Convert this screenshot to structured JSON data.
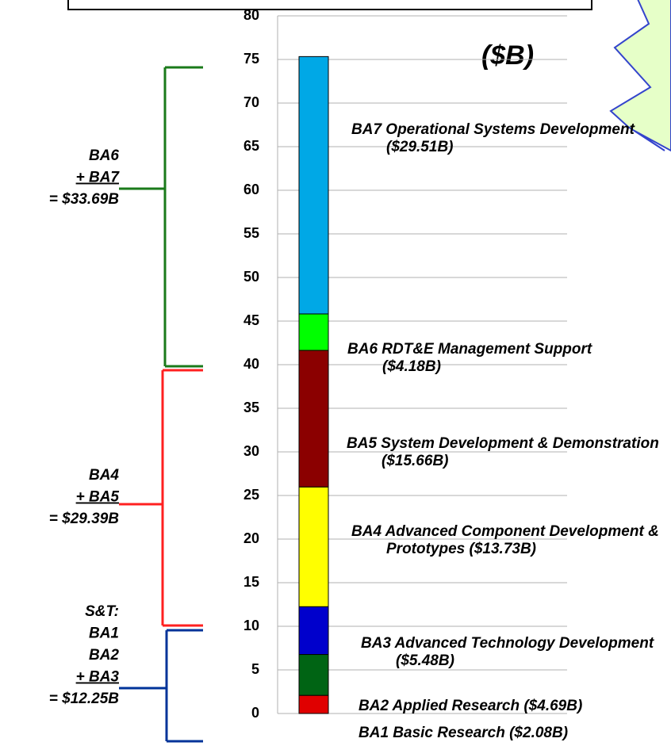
{
  "chart_data": {
    "type": "stacked-bar",
    "unit_label": "($B)",
    "categories": [
      null
    ],
    "ylim": [
      0,
      80
    ],
    "yticks": [
      0,
      5,
      10,
      15,
      20,
      25,
      30,
      35,
      40,
      45,
      50,
      55,
      60,
      65,
      70,
      75,
      80
    ],
    "grid": true,
    "series": [
      {
        "name": "BA1 Basic Research ($2.08B)",
        "color": "#e00000",
        "values": [
          2.08
        ]
      },
      {
        "name": "BA2 Applied Research ($4.69B)",
        "color": "#006414",
        "values": [
          4.69
        ]
      },
      {
        "name": "BA3 Advanced Technology Development ($5.48B)",
        "color": "#0000cc",
        "values": [
          5.48
        ]
      },
      {
        "name": "BA4 Advanced Component Development & Prototypes ($13.73B)",
        "color": "#ffff00",
        "values": [
          13.73
        ]
      },
      {
        "name": "BA5 System Development & Demonstration ($15.66B)",
        "color": "#8b0000",
        "values": [
          15.66
        ]
      },
      {
        "name": "BA6 RDT&E Management Support ($4.18B)",
        "color": "#00ff00",
        "values": [
          4.18
        ]
      },
      {
        "name": "BA7 Operational Systems Development ($29.51B)",
        "color": "#00a8e6",
        "values": [
          29.51
        ]
      }
    ],
    "brackets": [
      {
        "lines": [
          "S&T:",
          "BA1",
          "BA2",
          "+ BA3",
          "= $12.25B"
        ],
        "color": "#003399"
      },
      {
        "lines": [
          "BA4",
          "+ BA5",
          "= $29.39B"
        ],
        "color": "#ff2020"
      },
      {
        "lines": [
          "BA6",
          "+ BA7",
          "= $33.69B"
        ],
        "color": "#1a7a1a"
      }
    ]
  }
}
